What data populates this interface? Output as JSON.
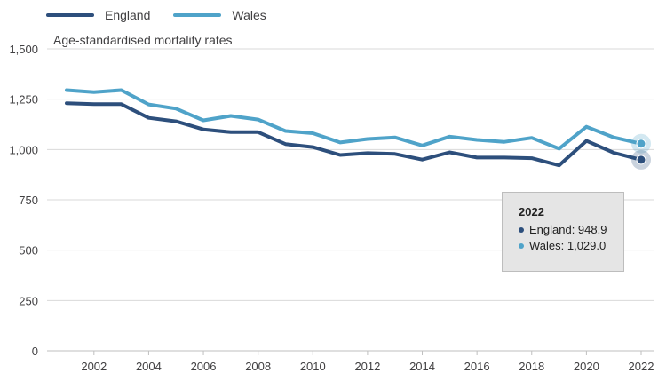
{
  "legend": {
    "england": "England",
    "wales": "Wales"
  },
  "tooltip": {
    "year": "2022",
    "england_text": "England: 948.9",
    "wales_text": "Wales: 1,029.0"
  },
  "colors": {
    "england": "#2d4f7c",
    "wales": "#4fa3c9",
    "grid": "#d9d9d9",
    "axis_text": "#414042"
  },
  "chart_data": {
    "type": "line",
    "title": "",
    "ylabel": "Age-standardised mortality rates",
    "xlabel": "",
    "ylim": [
      0,
      1500
    ],
    "yticks": [
      0,
      250,
      500,
      750,
      1000,
      1250,
      1500
    ],
    "ytick_labels": [
      "0",
      "250",
      "500",
      "750",
      "1,000",
      "1,250",
      "1,500"
    ],
    "xlim": [
      2001,
      2022
    ],
    "xticks": [
      2002,
      2004,
      2006,
      2008,
      2010,
      2012,
      2014,
      2016,
      2018,
      2020,
      2022
    ],
    "x": [
      2001,
      2002,
      2003,
      2004,
      2005,
      2006,
      2007,
      2008,
      2009,
      2010,
      2011,
      2012,
      2013,
      2014,
      2015,
      2016,
      2017,
      2018,
      2019,
      2020,
      2021,
      2022
    ],
    "grid": true,
    "legend_position": "top-left",
    "highlight_x": 2022,
    "series": [
      {
        "name": "England",
        "color": "#2d4f7c",
        "values": [
          1230,
          1225,
          1225,
          1157,
          1140,
          1100,
          1086,
          1086,
          1027,
          1012,
          973,
          982,
          978,
          950,
          986,
          960,
          960,
          957,
          921,
          1043,
          984,
          948.9
        ]
      },
      {
        "name": "Wales",
        "color": "#4fa3c9",
        "values": [
          1295,
          1285,
          1295,
          1224,
          1203,
          1145,
          1167,
          1149,
          1092,
          1081,
          1035,
          1052,
          1060,
          1020,
          1064,
          1048,
          1038,
          1058,
          1004,
          1113,
          1060,
          1029.0
        ]
      }
    ]
  }
}
